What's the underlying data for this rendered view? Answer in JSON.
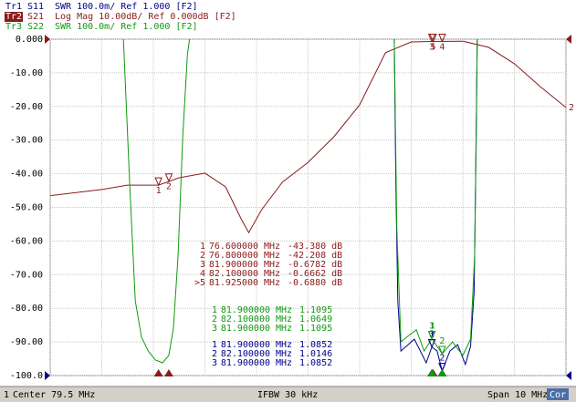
{
  "chart_data": {
    "type": "line",
    "xlim": [
      74.5,
      84.5
    ],
    "xticks": [
      74.5,
      75.5,
      76.5,
      77.5,
      78.5,
      79.5,
      80.5,
      81.5,
      82.5,
      83.5,
      84.5
    ],
    "ylim": [
      -100,
      0
    ],
    "yticks": [
      {
        "value": 0,
        "label": "0.000"
      },
      {
        "value": -10,
        "label": "-10.00"
      },
      {
        "value": -20,
        "label": "-20.00"
      },
      {
        "value": -30,
        "label": "-30.00"
      },
      {
        "value": -40,
        "label": "-40.00"
      },
      {
        "value": -50,
        "label": "-50.00"
      },
      {
        "value": -60,
        "label": "-60.00"
      },
      {
        "value": -70,
        "label": "-70.00"
      },
      {
        "value": -80,
        "label": "-80.00"
      },
      {
        "value": -90,
        "label": "-90.00"
      },
      {
        "value": -100,
        "label": "-100.0"
      }
    ],
    "y2lim": [
      1.0,
      2.0
    ],
    "grid": true,
    "series": [
      {
        "trace": "Tr1",
        "name": "S11",
        "format": "SWR 100.0m/ Ref 1.000 [F2]",
        "color": "#00008b",
        "axis": "y2",
        "x": [
          81.17,
          81.2,
          81.24,
          81.3,
          81.44,
          81.56,
          81.65,
          81.79,
          81.9,
          82.0,
          82.1,
          82.25,
          82.4,
          82.55,
          82.65,
          82.72,
          82.76,
          82.78
        ],
        "values": [
          2.0,
          1.575,
          1.222,
          1.073,
          1.092,
          1.108,
          1.081,
          1.038,
          1.0852,
          1.073,
          1.0146,
          1.073,
          1.092,
          1.033,
          1.087,
          1.249,
          1.71,
          2.0
        ],
        "markers": [
          {
            "label": "1",
            "x": 81.9,
            "y": 1.0852,
            "x_label": "81.900000",
            "unit": "MHz",
            "y_label": "1.0852"
          },
          {
            "label": "2",
            "x": 82.1,
            "y": 1.0146,
            "x_label": "82.100000",
            "unit": "MHz",
            "y_label": "1.0146"
          },
          {
            "label": "3",
            "x": 81.9,
            "y": 1.0852,
            "x_label": "81.900000",
            "unit": "MHz",
            "y_label": "1.0852"
          }
        ]
      },
      {
        "trace": "Tr2",
        "name": "S21",
        "format": "Log Mag 10.00dB/ Ref 0.000dB [F2]",
        "color": "#8b1a1a",
        "end_label": "2",
        "x": [
          74.5,
          75.5,
          76.0,
          76.6,
          77.0,
          77.5,
          77.9,
          78.2,
          78.35,
          78.6,
          79.0,
          79.5,
          80.0,
          80.5,
          81.0,
          81.5,
          81.9,
          82.5,
          83.0,
          83.5,
          84.0,
          84.5
        ],
        "values": [
          -46.5,
          -44.7,
          -43.4,
          -43.38,
          -41.2,
          -39.8,
          -43.9,
          -53.4,
          -57.5,
          -50.7,
          -42.5,
          -36.6,
          -29.0,
          -19.5,
          -4.0,
          -0.8,
          -0.6782,
          -0.6,
          -2.4,
          -7.3,
          -14.1,
          -20.3
        ],
        "markers": [
          {
            "label": "1",
            "x": 76.6,
            "y": -43.38,
            "x_label": "76.600000",
            "unit": "MHz",
            "y_label": "-43.380 dB"
          },
          {
            "label": "2",
            "x": 76.8,
            "y": -42.208,
            "x_label": "76.800000",
            "unit": "MHz",
            "y_label": "-42.208 dB"
          },
          {
            "label": "3",
            "x": 81.9,
            "y": -0.6782,
            "x_label": "81.900000",
            "unit": "MHz",
            "y_label": "-0.6782 dB"
          },
          {
            "label": "4",
            "x": 82.1,
            "y": -0.6662,
            "x_label": "82.100000",
            "unit": "MHz",
            "y_label": "-0.6662 dB"
          },
          {
            "label": "5",
            "table_label": ">5",
            "x": 81.925,
            "y": -0.688,
            "x_label": "81.925000",
            "unit": "MHz",
            "y_label": "-0.6880 dB"
          }
        ]
      },
      {
        "trace": "Tr3",
        "name": "S22",
        "format": "SWR 100.0m/ Ref 1.000 [F2]",
        "color": "#119911",
        "axis": "y2",
        "x": [
          75.92,
          76.04,
          76.15,
          76.27,
          76.4,
          76.54,
          76.68,
          76.8,
          76.89,
          76.98,
          77.07,
          77.16,
          77.2,
          79.0,
          81.17,
          81.22,
          81.3,
          81.45,
          81.6,
          81.75,
          81.9,
          82.1,
          82.3,
          82.5,
          82.65,
          82.73,
          82.78
        ],
        "values": [
          2.0,
          1.575,
          1.222,
          1.114,
          1.073,
          1.046,
          1.038,
          1.06,
          1.141,
          1.358,
          1.71,
          1.954,
          2.0,
          null,
          2.0,
          1.439,
          1.1,
          1.119,
          1.136,
          1.073,
          1.1095,
          1.0649,
          1.1,
          1.06,
          1.108,
          1.358,
          2.0
        ],
        "markers": [
          {
            "label": "1",
            "x": 81.9,
            "y": 1.1095,
            "x_label": "81.900000",
            "unit": "MHz",
            "y_label": "1.1095"
          },
          {
            "label": "2",
            "x": 82.1,
            "y": 1.0649,
            "x_label": "82.100000",
            "unit": "MHz",
            "y_label": "1.0649"
          },
          {
            "label": "3",
            "x": 81.9,
            "y": 1.1095,
            "x_label": "81.900000",
            "unit": "MHz",
            "y_label": "1.1095"
          }
        ]
      }
    ],
    "status": {
      "channel": "1",
      "center": "Center 79.5 MHz",
      "ifbw": "IFBW 30 kHz",
      "span": "Span 10 MHz",
      "cor": "Cor"
    }
  }
}
